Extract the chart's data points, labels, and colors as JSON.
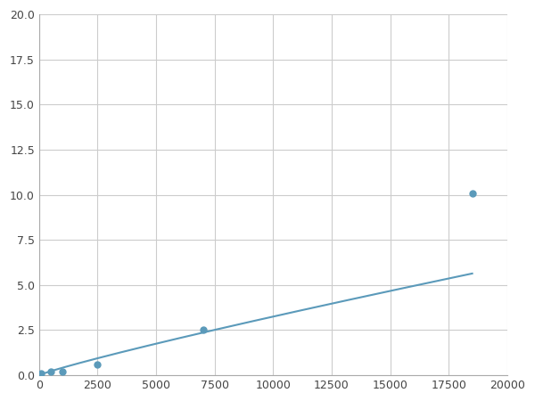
{
  "x": [
    100,
    500,
    1000,
    2500,
    7000,
    18500
  ],
  "y": [
    0.1,
    0.2,
    0.2,
    0.6,
    2.5,
    10.1
  ],
  "line_color": "#5b9aba",
  "marker_color": "#5b9aba",
  "marker_size": 5,
  "xlim": [
    0,
    20000
  ],
  "ylim": [
    0,
    20
  ],
  "xticks": [
    0,
    2500,
    5000,
    7500,
    10000,
    12500,
    15000,
    17500,
    20000
  ],
  "yticks": [
    0.0,
    2.5,
    5.0,
    7.5,
    10.0,
    12.5,
    15.0,
    17.5,
    20.0
  ],
  "grid_color": "#cccccc",
  "background_color": "#ffffff",
  "figsize": [
    6.0,
    4.5
  ],
  "dpi": 100
}
